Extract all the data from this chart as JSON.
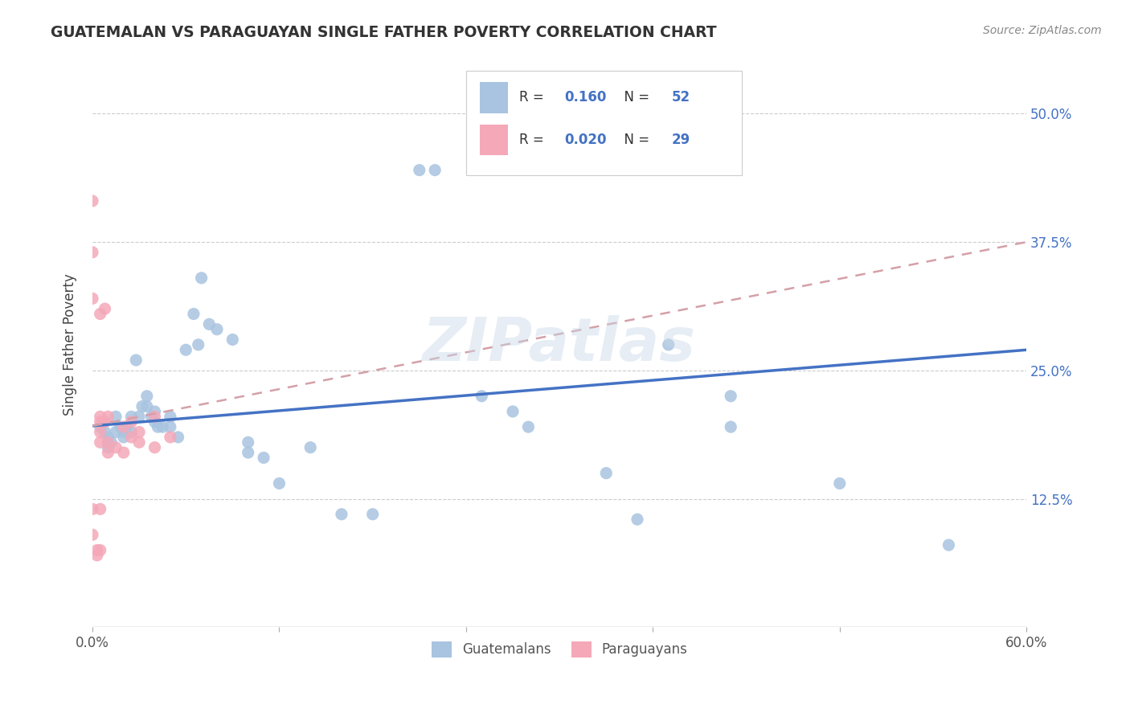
{
  "title": "GUATEMALAN VS PARAGUAYAN SINGLE FATHER POVERTY CORRELATION CHART",
  "source": "Source: ZipAtlas.com",
  "ylabel": "Single Father Poverty",
  "xlim": [
    0.0,
    0.6
  ],
  "ylim": [
    0.0,
    0.55
  ],
  "guatemalans_color": "#a8c4e0",
  "paraguayans_color": "#f4a8b8",
  "trend_guatemalans_color": "#4472c4",
  "trend_paraguayans_color": "#d4a0a8",
  "watermark": "ZIPatlas",
  "yticks": [
    0.125,
    0.25,
    0.375,
    0.5
  ],
  "ytick_labels": [
    "12.5%",
    "25.0%",
    "37.5%",
    "50.0%"
  ],
  "xticks": [
    0.0,
    0.12,
    0.24,
    0.36,
    0.48,
    0.6
  ],
  "xtick_labels": [
    "0.0%",
    "",
    "",
    "",
    "",
    "60.0%"
  ],
  "trend_g_x0": 0.0,
  "trend_g_y0": 0.196,
  "trend_g_x1": 0.6,
  "trend_g_y1": 0.27,
  "trend_p_x0": 0.0,
  "trend_p_y0": 0.196,
  "trend_p_x1": 0.6,
  "trend_p_y1": 0.375,
  "guatemalans_x": [
    0.005,
    0.008,
    0.01,
    0.01,
    0.012,
    0.015,
    0.015,
    0.018,
    0.02,
    0.02,
    0.022,
    0.025,
    0.025,
    0.028,
    0.03,
    0.032,
    0.035,
    0.035,
    0.038,
    0.04,
    0.04,
    0.042,
    0.045,
    0.05,
    0.05,
    0.055,
    0.06,
    0.065,
    0.068,
    0.07,
    0.075,
    0.08,
    0.09,
    0.1,
    0.1,
    0.11,
    0.12,
    0.14,
    0.16,
    0.18,
    0.21,
    0.22,
    0.25,
    0.27,
    0.28,
    0.33,
    0.35,
    0.37,
    0.41,
    0.41,
    0.48,
    0.55
  ],
  "guatemalans_y": [
    0.195,
    0.19,
    0.185,
    0.175,
    0.18,
    0.205,
    0.19,
    0.195,
    0.19,
    0.185,
    0.195,
    0.205,
    0.19,
    0.26,
    0.205,
    0.215,
    0.225,
    0.215,
    0.205,
    0.21,
    0.2,
    0.195,
    0.195,
    0.205,
    0.195,
    0.185,
    0.27,
    0.305,
    0.275,
    0.34,
    0.295,
    0.29,
    0.28,
    0.18,
    0.17,
    0.165,
    0.14,
    0.175,
    0.11,
    0.11,
    0.445,
    0.445,
    0.225,
    0.21,
    0.195,
    0.15,
    0.105,
    0.275,
    0.225,
    0.195,
    0.14,
    0.08
  ],
  "paraguayans_x": [
    0.0,
    0.0,
    0.0,
    0.0,
    0.0,
    0.003,
    0.003,
    0.005,
    0.005,
    0.005,
    0.005,
    0.005,
    0.005,
    0.005,
    0.008,
    0.008,
    0.01,
    0.01,
    0.01,
    0.015,
    0.02,
    0.02,
    0.025,
    0.025,
    0.03,
    0.03,
    0.04,
    0.04,
    0.05
  ],
  "paraguayans_y": [
    0.415,
    0.365,
    0.32,
    0.115,
    0.09,
    0.075,
    0.07,
    0.305,
    0.205,
    0.2,
    0.19,
    0.18,
    0.115,
    0.075,
    0.31,
    0.2,
    0.205,
    0.18,
    0.17,
    0.175,
    0.195,
    0.17,
    0.2,
    0.185,
    0.19,
    0.18,
    0.205,
    0.175,
    0.185
  ]
}
